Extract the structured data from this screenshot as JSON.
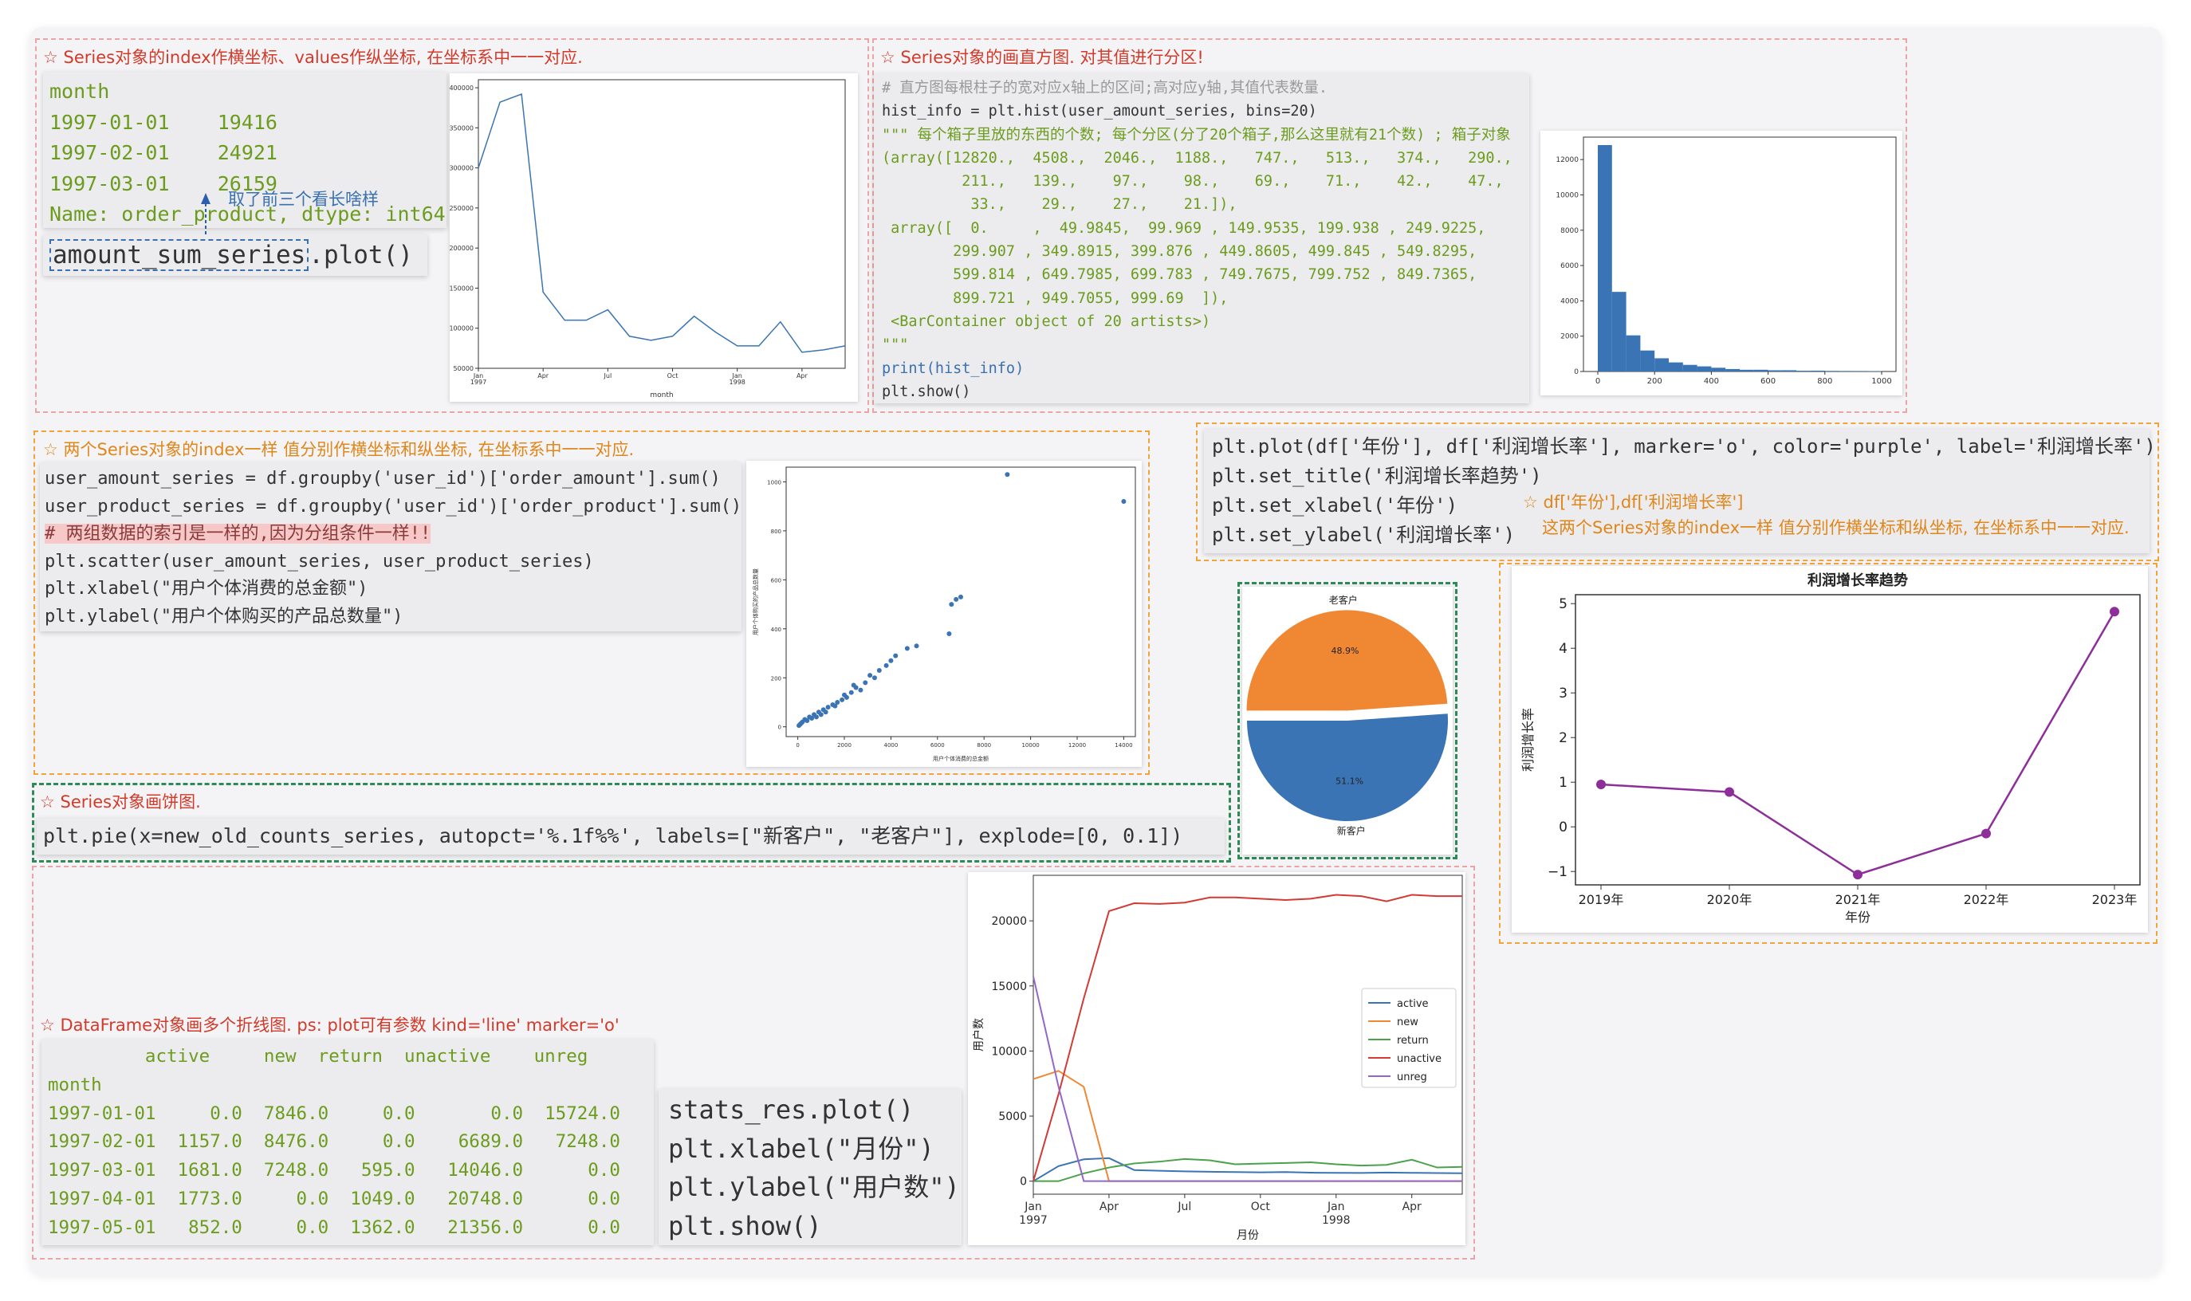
{
  "sec1": {
    "title": "☆ Series对象的index作横坐标、values作纵坐标, 在坐标系中一一对应.",
    "out_lines": [
      "month",
      "1997-01-01    19416",
      "1997-02-01    24921",
      "1997-03-01    26159",
      "Name: order_product, dtype: int64"
    ],
    "plot_var": "amount_sum_series",
    "plot_call": ".plot()",
    "annotation": "取了前三个看长啥样"
  },
  "sec2": {
    "title": "☆ Series对象的画直方图. 对其值进行分区!",
    "code_lines": [
      "# 直方图每根柱子的宽对应x轴上的区间;高对应y轴,其值代表数量.",
      "hist_info = plt.hist(user_amount_series, bins=20)",
      "\"\"\" 每个箱子里放的东西的个数; 每个分区(分了20个箱子,那么这里就有21个数) ; 箱子对象",
      "(array([12820.,  4508.,  2046.,  1188.,   747.,   513.,   374.,   290.,",
      "         211.,   139.,    97.,    98.,    69.,    71.,    42.,    47.,",
      "          33.,    29.,    27.,    21.]),",
      " array([  0.     ,  49.9845,  99.969 , 149.9535, 199.938 , 249.9225,",
      "        299.907 , 349.8915, 399.876 , 449.8605, 499.845 , 549.8295,",
      "        599.814 , 649.7985, 699.783 , 749.7675, 799.752 , 849.7365,",
      "        899.721 , 949.7055, 999.69  ]),",
      " <BarContainer object of 20 artists>)",
      "\"\"\"",
      "print(hist_info)",
      "plt.show()"
    ]
  },
  "sec3": {
    "title": "☆ 两个Series对象的index一样 值分别作横坐标和纵坐标, 在坐标系中一一对应.",
    "code_lines": [
      "user_amount_series = df.groupby('user_id')['order_amount'].sum()",
      "user_product_series = df.groupby('user_id')['order_product'].sum()",
      "# 两组数据的索引是一样的,因为分组条件一样!!",
      "plt.scatter(user_amount_series, user_product_series)",
      "plt.xlabel(\"用户个体消费的总金额\")",
      "plt.ylabel(\"用户个体购买的产品总数量\")"
    ]
  },
  "sec4": {
    "title": "☆ Series对象画饼图.",
    "code": "plt.pie(x=new_old_counts_series, autopct='%.1f%%', labels=[\"新客户\", \"老客户\"], explode=[0, 0.1])"
  },
  "sec5": {
    "code_lines": [
      "plt.plot(df['年份'], df['利润增长率'], marker='o', color='purple', label='利润增长率')",
      "plt.set_title('利润增长率趋势')",
      "plt.set_xlabel('年份')",
      "plt.set_ylabel('利润增长率')"
    ],
    "note1": "☆ df['年份'],df['利润增长率']",
    "note2": "这两个Series对象的index一样 值分别作横坐标和纵坐标, 在坐标系中一一对应."
  },
  "sec6": {
    "title": "☆ DataFrame对象画多个折线图. ps: plot可有参数 kind='line' marker='o'",
    "table_header": "         active     new  return  unactive    unreg",
    "table_index": "month",
    "table_rows": [
      "1997-01-01     0.0  7846.0     0.0       0.0  15724.0",
      "1997-02-01  1157.0  8476.0     0.0    6689.0   7248.0",
      "1997-03-01  1681.0  7248.0   595.0   14046.0      0.0",
      "1997-04-01  1773.0     0.0  1049.0   20748.0      0.0",
      "1997-05-01   852.0     0.0  1362.0   21356.0      0.0"
    ],
    "code_lines": [
      "stats_res.plot()",
      "plt.xlabel(\"月份\")",
      "plt.ylabel(\"用户数\")",
      "plt.show()"
    ]
  },
  "colors": {
    "blue": "#3a74b4",
    "orange": "#ef8733",
    "purple": "#8e2e9a",
    "red_title": "#d23a2a",
    "orange_title": "#e0861a"
  },
  "chart_data": [
    {
      "type": "line",
      "xlabel": "month",
      "x_ticks": [
        "Jan\n1997",
        "Apr",
        "Jul",
        "Oct",
        "Jan\n1998",
        "Apr"
      ],
      "y_ticks": [
        "400000",
        "350000",
        "300000",
        "250000",
        "200000",
        "150000",
        "100000",
        "50000"
      ],
      "ylim": [
        50000,
        410000
      ],
      "values": [
        300000,
        382000,
        392000,
        145000,
        110000,
        110000,
        123000,
        90000,
        85000,
        90000,
        115000,
        95000,
        78000,
        78000,
        108000,
        70000,
        73000,
        78000
      ]
    },
    {
      "type": "bar",
      "x_ticks": [
        "0",
        "200",
        "400",
        "600",
        "800",
        "1000"
      ],
      "y_ticks": [
        "12000",
        "10000",
        "8000",
        "6000",
        "4000",
        "2000",
        "0"
      ],
      "xlim": [
        0,
        1000
      ],
      "ylim": [
        0,
        13000
      ],
      "values": [
        12820,
        4508,
        2046,
        1188,
        747,
        513,
        374,
        290,
        211,
        139,
        97,
        98,
        69,
        71,
        42,
        47,
        33,
        29,
        27,
        21
      ]
    },
    {
      "type": "scatter",
      "xlabel": "用户个体消费的总金额",
      "ylabel": "用户个体购买的产品总数量",
      "x_ticks": [
        "0",
        "2000",
        "4000",
        "6000",
        "8000",
        "10000",
        "12000",
        "14000"
      ],
      "y_ticks": [
        "1000",
        "800",
        "600",
        "400",
        "200",
        "0"
      ],
      "xlim": [
        -500,
        14500
      ],
      "ylim": [
        -40,
        1060
      ],
      "points": [
        [
          9000,
          1030
        ],
        [
          14000,
          920
        ],
        [
          6800,
          520
        ],
        [
          7000,
          530
        ],
        [
          6600,
          500
        ],
        [
          6500,
          380
        ],
        [
          5100,
          330
        ],
        [
          4700,
          320
        ],
        [
          4200,
          290
        ],
        [
          4000,
          270
        ],
        [
          3800,
          250
        ],
        [
          3300,
          200
        ],
        [
          2900,
          180
        ],
        [
          2500,
          160
        ],
        [
          2300,
          140
        ],
        [
          2100,
          120
        ],
        [
          1900,
          110
        ],
        [
          1700,
          100
        ],
        [
          1500,
          90
        ],
        [
          1300,
          80
        ],
        [
          1100,
          70
        ],
        [
          900,
          60
        ],
        [
          700,
          50
        ],
        [
          500,
          40
        ],
        [
          300,
          30
        ],
        [
          200,
          20
        ],
        [
          100,
          10
        ],
        [
          50,
          5
        ],
        [
          2700,
          150
        ],
        [
          2000,
          130
        ],
        [
          1600,
          85
        ],
        [
          1200,
          60
        ],
        [
          800,
          40
        ],
        [
          400,
          25
        ],
        [
          3500,
          230
        ],
        [
          3100,
          210
        ],
        [
          2400,
          170
        ],
        [
          1000,
          50
        ],
        [
          600,
          35
        ],
        [
          150,
          15
        ]
      ]
    },
    {
      "type": "pie",
      "labels": [
        "新客户",
        "老客户"
      ],
      "values": [
        51.1,
        48.9
      ],
      "autopct": [
        "51.1%",
        "48.9%"
      ],
      "explode": [
        0,
        0.1
      ]
    },
    {
      "type": "line",
      "title": "利润增长率趋势",
      "xlabel": "年份",
      "ylabel": "利润增长率",
      "categories": [
        "2019年",
        "2020年",
        "2021年",
        "2022年",
        "2023年"
      ],
      "values": [
        0.95,
        0.78,
        -1.07,
        -0.15,
        4.82
      ],
      "y_ticks": [
        "5",
        "4",
        "3",
        "2",
        "1",
        "0",
        "−1"
      ],
      "ylim": [
        -1.3,
        5.2
      ]
    },
    {
      "type": "line",
      "xlabel": "月份",
      "ylabel": "用户数",
      "x_ticks": [
        "Jan\n1997",
        "Apr",
        "Jul",
        "Oct",
        "Jan\n1998",
        "Apr"
      ],
      "y_ticks": [
        "20000",
        "15000",
        "10000",
        "5000",
        "0"
      ],
      "ylim": [
        -1000,
        23500
      ],
      "series": [
        {
          "name": "active",
          "values": [
            0,
            1157,
            1681,
            1773,
            852,
            800,
            750,
            720,
            700,
            680,
            700,
            650,
            640,
            630,
            660,
            640,
            620,
            610
          ]
        },
        {
          "name": "new",
          "values": [
            7846,
            8476,
            7248,
            0,
            0,
            0,
            0,
            0,
            0,
            0,
            0,
            0,
            0,
            0,
            0,
            0,
            0,
            0
          ]
        },
        {
          "name": "return",
          "values": [
            0,
            0,
            595,
            1049,
            1362,
            1500,
            1700,
            1600,
            1300,
            1350,
            1400,
            1450,
            1300,
            1200,
            1250,
            1650,
            1050,
            1100
          ]
        },
        {
          "name": "unactive",
          "values": [
            0,
            6689,
            14046,
            20748,
            21356,
            21300,
            21400,
            21800,
            21800,
            21700,
            21600,
            21700,
            22000,
            21900,
            21500,
            22000,
            21900,
            21900
          ]
        },
        {
          "name": "unreg",
          "values": [
            15724,
            7248,
            0,
            0,
            0,
            0,
            0,
            0,
            0,
            0,
            0,
            0,
            0,
            0,
            0,
            0,
            0,
            0
          ]
        }
      ]
    }
  ]
}
